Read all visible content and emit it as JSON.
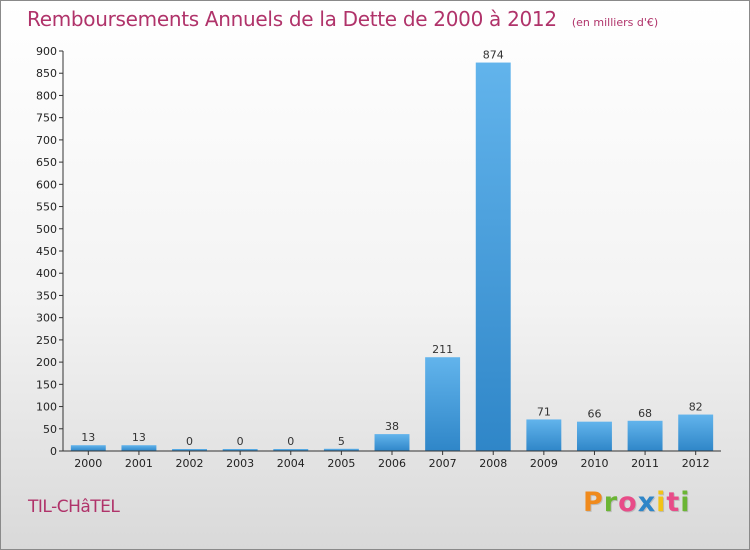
{
  "header": {
    "title": "Remboursements Annuels de la Dette de 2000 à 2012",
    "unit": "(en milliers d'€)"
  },
  "footer": {
    "commune": "TIL-CHâTEL",
    "brand_letters": [
      "P",
      "r",
      "o",
      "x",
      "i",
      "t",
      "i"
    ]
  },
  "colors": {
    "bar_light": "#62b4ec",
    "bar_dark": "#2f86c8",
    "title": "#b0336a",
    "brand": [
      "#f08a1c",
      "#6bb534",
      "#e84c88",
      "#2f86c8",
      "#f2c316",
      "#e84c88",
      "#6bb534"
    ]
  },
  "chart_data": {
    "type": "bar",
    "title": "Remboursements Annuels de la Dette de 2000 à 2012",
    "unit": "(en milliers d'€)",
    "categories": [
      "2000",
      "2001",
      "2002",
      "2003",
      "2004",
      "2005",
      "2006",
      "2007",
      "2008",
      "2009",
      "2010",
      "2011",
      "2012"
    ],
    "values": [
      13,
      13,
      0,
      0,
      0,
      5,
      38,
      211,
      874,
      71,
      66,
      68,
      82
    ],
    "value_labels": [
      "13",
      "13",
      "0",
      "0",
      "0",
      "5",
      "38",
      "211",
      "874",
      "71",
      "66",
      "68",
      "82"
    ],
    "ylim": [
      0,
      900
    ],
    "yticks": [
      "0",
      "50",
      "100",
      "150",
      "200",
      "250",
      "300",
      "350",
      "400",
      "450",
      "500",
      "550",
      "600",
      "650",
      "700",
      "750",
      "800",
      "850",
      "900"
    ],
    "grid": false,
    "legend": "none"
  }
}
